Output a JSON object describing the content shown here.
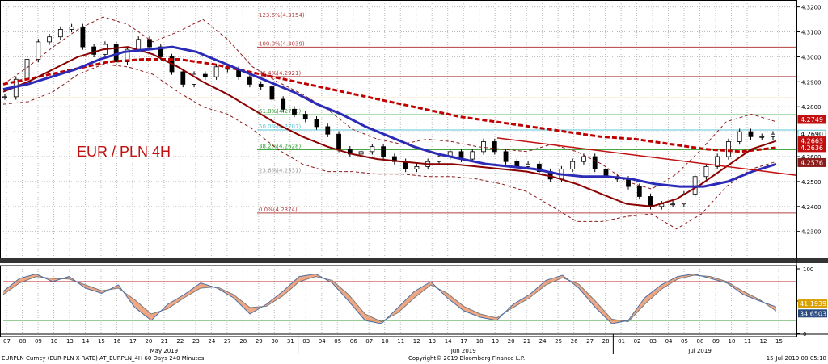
{
  "footer": {
    "left": "EURPLN Curncy (EUR-PLN X-RATE) AT_EURPLN_4H 60 Days 240 Minutes",
    "center": "Copyright© 2019 Bloomberg Finance L.P.",
    "right": "15-Jul-2019 08:05:18"
  },
  "colors": {
    "background": "#ffffff",
    "candle": "#000000",
    "ma_fast": "#2b2bb8",
    "ma_mid": "#8b0000",
    "ma_slow_dashed": "#c00000",
    "bollinger": "#8b1c1c",
    "trendline": "#c01010",
    "fib_100": "#b44040",
    "fib_618": "#2e9b2e",
    "fib_50": "#58c8d8",
    "fib_382": "#2e9b2e",
    "fib_0": "#b44040",
    "hline_orange": "#d9a000",
    "stoch_line": "#4a6fa5",
    "stoch_fill": "#e98a5a",
    "stoch_hi": "#c02020",
    "stoch_lo": "#2e9b2e"
  },
  "chart_data": [
    {
      "type": "line",
      "title": "EUR / PLN 4H",
      "ylim": [
        4.2202,
        4.3215
      ],
      "y_ticks": [
        "4.2300",
        "4.2400",
        "4.2500",
        "4.2600",
        "4.2700",
        "4.2800",
        "4.2900",
        "4.3000",
        "4.3100",
        "4.3200"
      ],
      "x_ticks": [
        "07",
        "08",
        "09",
        "10",
        "13",
        "14",
        "15",
        "16",
        "17",
        "20",
        "21",
        "22",
        "23",
        "24",
        "27",
        "28",
        "29",
        "30",
        "31",
        "03",
        "04",
        "05",
        "06",
        "07",
        "10",
        "11",
        "12",
        "13",
        "14",
        "17",
        "18",
        "19",
        "20",
        "21",
        "24",
        "25",
        "26",
        "27",
        "28",
        "01",
        "02",
        "03",
        "04",
        "05",
        "08",
        "09",
        "10",
        "11",
        "12",
        "15"
      ],
      "month_labels": [
        "May 2019",
        "Jun 2019",
        "Jul 2019"
      ],
      "fibonacci": [
        {
          "label": "123.6%(4.3154)",
          "value": 4.3154
        },
        {
          "label": "100.0%(4.3039)",
          "value": 4.3039
        },
        {
          "label": "76.4%(4.2921)",
          "value": 4.2921
        },
        {
          "label": "61.8%(4.2768)",
          "value": 4.2768
        },
        {
          "label": "50.0%(4.2707)",
          "value": 4.2707
        },
        {
          "label": "38.2%(4.2628)",
          "value": 4.2628
        },
        {
          "label": "23.6%(4.2531)",
          "value": 4.2531
        },
        {
          "label": "0.0%(4.2374)",
          "value": 4.2374
        }
      ],
      "horizontal_line": 4.2835,
      "badges": [
        {
          "text": "4.2749",
          "value": 4.2749
        },
        {
          "text": "4.2690",
          "value": 4.269
        },
        {
          "text": "4.2663",
          "value": 4.2663
        },
        {
          "text": "4.2636",
          "value": 4.2636
        },
        {
          "text": "4.2576",
          "value": 4.2576
        }
      ],
      "series": [
        {
          "key": "price",
          "style": "candles",
          "values": [
            4.284,
            4.291,
            4.299,
            4.306,
            4.308,
            4.311,
            4.312,
            4.304,
            4.301,
            4.305,
            4.298,
            4.303,
            4.307,
            4.304,
            4.3,
            4.294,
            4.289,
            4.293,
            4.292,
            4.296,
            4.295,
            4.292,
            4.289,
            4.288,
            4.283,
            4.279,
            4.277,
            4.275,
            4.272,
            4.269,
            4.263,
            4.261,
            4.262,
            4.264,
            4.26,
            4.258,
            4.255,
            4.256,
            4.258,
            4.26,
            4.262,
            4.259,
            4.262,
            4.266,
            4.262,
            4.258,
            4.256,
            4.257,
            4.254,
            4.251,
            4.255,
            4.258,
            4.26,
            4.255,
            4.252,
            4.251,
            4.248,
            4.244,
            4.24,
            4.241,
            4.241,
            4.245,
            4.252,
            4.256,
            4.26,
            4.266,
            4.27,
            4.268,
            4.268,
            4.269
          ]
        },
        {
          "key": "ma_fast",
          "values": [
            4.287,
            4.289,
            4.292,
            4.295,
            4.299,
            4.302,
            4.303,
            4.304,
            4.302,
            4.298,
            4.294,
            4.29,
            4.286,
            4.281,
            4.277,
            4.272,
            4.268,
            4.264,
            4.261,
            4.259,
            4.257,
            4.256,
            4.255,
            4.253,
            4.252,
            4.252,
            4.251,
            4.249,
            4.248,
            4.248,
            4.25,
            4.254,
            4.257
          ]
        },
        {
          "key": "ma_mid",
          "values": [
            4.286,
            4.29,
            4.295,
            4.3,
            4.303,
            4.304,
            4.301,
            4.296,
            4.29,
            4.285,
            4.279,
            4.273,
            4.268,
            4.264,
            4.261,
            4.259,
            4.258,
            4.257,
            4.257,
            4.256,
            4.255,
            4.254,
            4.252,
            4.249,
            4.245,
            4.241,
            4.24,
            4.243,
            4.249,
            4.256,
            4.263,
            4.2663
          ]
        },
        {
          "key": "ma_slow",
          "values": [
            4.289,
            4.292,
            4.295,
            4.298,
            4.299,
            4.299,
            4.297,
            4.294,
            4.291,
            4.288,
            4.285,
            4.282,
            4.279,
            4.276,
            4.274,
            4.272,
            4.27,
            4.268,
            4.267,
            4.265,
            4.263,
            4.262,
            4.2636
          ]
        },
        {
          "key": "bollinger_upper",
          "values": [
            4.289,
            4.296,
            4.304,
            4.311,
            4.316,
            4.313,
            4.306,
            4.31,
            4.315,
            4.307,
            4.296,
            4.29,
            4.285,
            4.279,
            4.271,
            4.267,
            4.265,
            4.267,
            4.266,
            4.264,
            4.263,
            4.262,
            4.265,
            4.262,
            4.257,
            4.25,
            4.247,
            4.253,
            4.263,
            4.274,
            4.277,
            4.274
          ]
        },
        {
          "key": "bollinger_lower",
          "values": [
            4.281,
            4.282,
            4.286,
            4.293,
            4.297,
            4.296,
            4.293,
            4.286,
            4.28,
            4.277,
            4.271,
            4.263,
            4.257,
            4.254,
            4.254,
            4.253,
            4.253,
            4.252,
            4.252,
            4.251,
            4.249,
            4.246,
            4.24,
            4.234,
            4.234,
            4.236,
            4.237,
            4.231,
            4.237,
            4.248,
            4.255,
            4.258
          ]
        },
        {
          "key": "trendline",
          "values": [
            4.2675,
            4.2525
          ]
        }
      ]
    },
    {
      "type": "line",
      "ylim": [
        0,
        100
      ],
      "y_ticks": [
        "0",
        "50",
        "100"
      ],
      "levels": [
        20,
        80
      ],
      "badges": [
        {
          "text": "41.1939",
          "value": 41.1939
        },
        {
          "text": "34.6503",
          "value": 34.6503
        }
      ],
      "series": [
        {
          "key": "stoch_k",
          "values": [
            65,
            85,
            92,
            80,
            88,
            70,
            62,
            75,
            40,
            20,
            45,
            60,
            78,
            70,
            55,
            30,
            45,
            65,
            88,
            92,
            78,
            50,
            20,
            15,
            40,
            65,
            80,
            55,
            35,
            25,
            20,
            45,
            60,
            82,
            90,
            70,
            40,
            15,
            20,
            55,
            75,
            88,
            92,
            85,
            78,
            60,
            50,
            41
          ]
        },
        {
          "key": "stoch_d",
          "values": [
            60,
            78,
            88,
            85,
            84,
            75,
            66,
            70,
            52,
            30,
            38,
            55,
            70,
            72,
            60,
            40,
            42,
            58,
            80,
            88,
            82,
            60,
            30,
            18,
            32,
            55,
            75,
            62,
            42,
            30,
            24,
            40,
            55,
            75,
            86,
            76,
            50,
            22,
            18,
            45,
            68,
            84,
            90,
            88,
            80,
            65,
            52,
            34.65
          ]
        }
      ]
    }
  ]
}
